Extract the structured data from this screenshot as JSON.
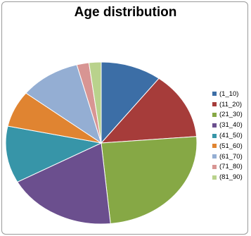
{
  "chart_data": {
    "type": "pie",
    "title": "Age distribution",
    "categories": [
      "(1_10)",
      "(11_20)",
      "(21_30)",
      "(31_40)",
      "(41_50)",
      "(51_60)",
      "(61_70)",
      "(71_80)",
      "(81_90)"
    ],
    "values": [
      10,
      13,
      24,
      18,
      11,
      7,
      10,
      2,
      2
    ],
    "colors": [
      "#3c6ea6",
      "#a63c3a",
      "#86a845",
      "#6b4f8e",
      "#3795a8",
      "#e08431",
      "#94aed3",
      "#d89593",
      "#b9d28c"
    ],
    "legend_position": "right"
  }
}
